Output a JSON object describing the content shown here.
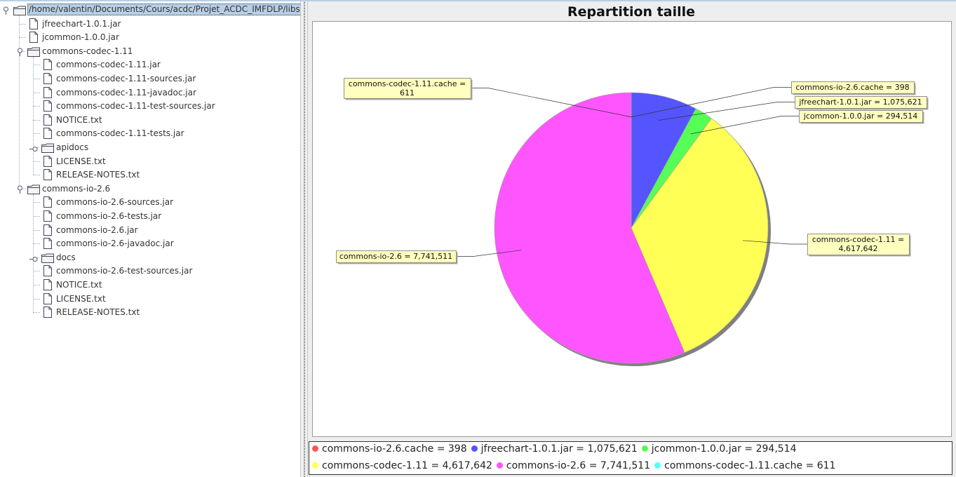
{
  "tree": {
    "nodes": [
      {
        "label": "/home/valentin/Documents/Cours/acdc/Projet_ACDC_IMFDLP/libs",
        "type": "folder-open",
        "depth": 0,
        "root": true
      },
      {
        "label": "jfreechart-1.0.1.jar",
        "type": "file",
        "depth": 1
      },
      {
        "label": "jcommon-1.0.0.jar",
        "type": "file",
        "depth": 1
      },
      {
        "label": "commons-codec-1.11",
        "type": "folder-open",
        "depth": 1
      },
      {
        "label": "commons-codec-1.11.jar",
        "type": "file",
        "depth": 2
      },
      {
        "label": "commons-codec-1.11-sources.jar",
        "type": "file",
        "depth": 2
      },
      {
        "label": "commons-codec-1.11-javadoc.jar",
        "type": "file",
        "depth": 2
      },
      {
        "label": "commons-codec-1.11-test-sources.jar",
        "type": "file",
        "depth": 2
      },
      {
        "label": "NOTICE.txt",
        "type": "file",
        "depth": 2
      },
      {
        "label": "commons-codec-1.11-tests.jar",
        "type": "file",
        "depth": 2
      },
      {
        "label": "apidocs",
        "type": "folder-closed",
        "depth": 2
      },
      {
        "label": "LICENSE.txt",
        "type": "file",
        "depth": 2
      },
      {
        "label": "RELEASE-NOTES.txt",
        "type": "file",
        "depth": 2
      },
      {
        "label": "commons-io-2.6",
        "type": "folder-open",
        "depth": 1
      },
      {
        "label": "commons-io-2.6-sources.jar",
        "type": "file",
        "depth": 2
      },
      {
        "label": "commons-io-2.6-tests.jar",
        "type": "file",
        "depth": 2
      },
      {
        "label": "commons-io-2.6.jar",
        "type": "file",
        "depth": 2
      },
      {
        "label": "commons-io-2.6-javadoc.jar",
        "type": "file",
        "depth": 2
      },
      {
        "label": "docs",
        "type": "folder-closed",
        "depth": 2
      },
      {
        "label": "commons-io-2.6-test-sources.jar",
        "type": "file",
        "depth": 2
      },
      {
        "label": "NOTICE.txt",
        "type": "file",
        "depth": 2
      },
      {
        "label": "LICENSE.txt",
        "type": "file",
        "depth": 2
      },
      {
        "label": "RELEASE-NOTES.txt",
        "type": "file",
        "depth": 2
      }
    ]
  },
  "chart_data": {
    "type": "pie",
    "title": "Repartition taille",
    "slices": [
      {
        "name": "commons-io-2.6.cache",
        "value": 398,
        "value_label": "398",
        "color": "#ff5555"
      },
      {
        "name": "jfreechart-1.0.1.jar",
        "value": 1075621,
        "value_label": "1,075,621",
        "color": "#5555ff"
      },
      {
        "name": "jcommon-1.0.0.jar",
        "value": 294514,
        "value_label": "294,514",
        "color": "#55ff55"
      },
      {
        "name": "commons-codec-1.11",
        "value": 4617642,
        "value_label": "4,617,642",
        "color": "#ffff55"
      },
      {
        "name": "commons-io-2.6",
        "value": 7741511,
        "value_label": "7,741,511",
        "color": "#ff55ff"
      },
      {
        "name": "commons-codec-1.11.cache",
        "value": 611,
        "value_label": "611",
        "color": "#55ffff"
      }
    ],
    "label_text": {
      "commons-io-2.6.cache": [
        "commons-io-2.6.cache = 398"
      ],
      "jfreechart-1.0.1.jar": [
        "jfreechart-1.0.1.jar = 1,075,621"
      ],
      "jcommon-1.0.0.jar": [
        "jcommon-1.0.0.jar = 294,514"
      ],
      "commons-codec-1.11": [
        "commons-codec-1.11 =",
        "4,617,642"
      ],
      "commons-io-2.6": [
        "commons-io-2.6 = 7,741,511"
      ],
      "commons-codec-1.11.cache": [
        "commons-codec-1.11.cache =",
        "611"
      ]
    },
    "legend": [
      [
        "commons-io-2.6.cache = 398",
        "jfreechart-1.0.1.jar = 1,075,621",
        "jcommon-1.0.0.jar = 294,514"
      ],
      [
        "commons-codec-1.11 = 4,617,642",
        "commons-io-2.6 = 7,741,511",
        "commons-codec-1.11.cache = 611"
      ]
    ],
    "legend_placement": "bottom"
  }
}
